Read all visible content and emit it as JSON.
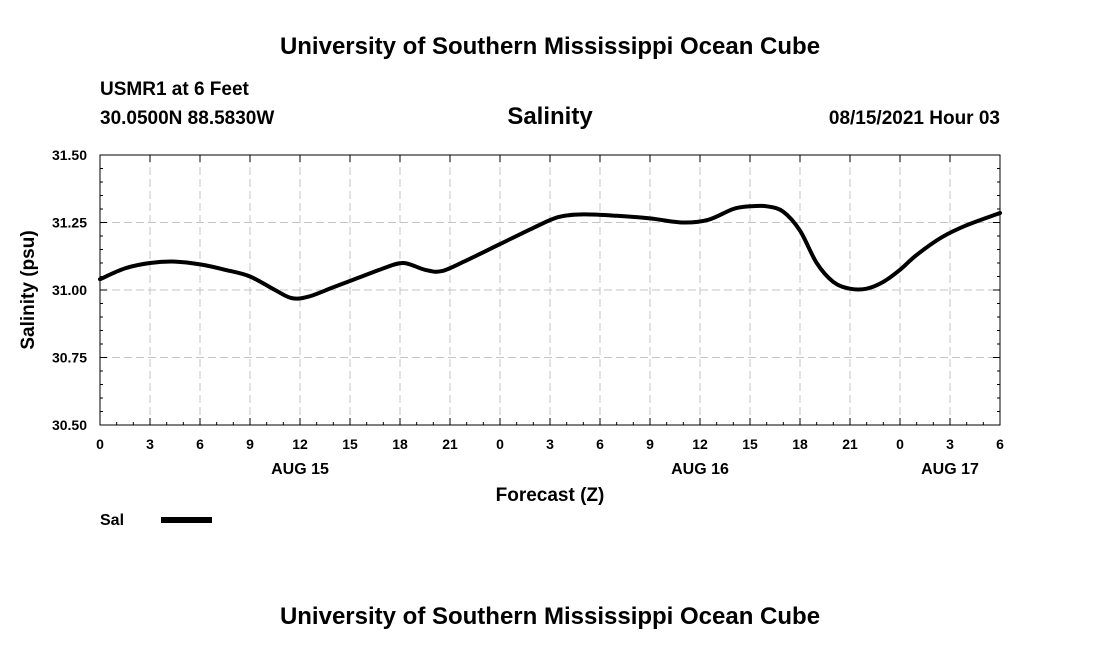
{
  "header": {
    "title": "University of Southern Mississippi Ocean Cube",
    "station": "USMR1 at 6 Feet",
    "coords": "30.0500N  88.5830W",
    "chart_title": "Salinity",
    "datetime": "08/15/2021 Hour 03"
  },
  "footer": {
    "title": "University of Southern Mississippi Ocean Cube"
  },
  "chart_data": {
    "type": "line",
    "title": "Salinity",
    "xlabel": "Forecast (Z)",
    "ylabel": "Salinity (psu)",
    "ylim": [
      30.5,
      31.5
    ],
    "xlim": [
      0,
      54
    ],
    "y_ticks": [
      "31.50",
      "31.25",
      "31.00",
      "30.75",
      "30.50"
    ],
    "x_tick_labels": [
      "0",
      "3",
      "6",
      "9",
      "12",
      "15",
      "18",
      "21",
      "0",
      "3",
      "6",
      "9",
      "12",
      "15",
      "18",
      "21",
      "0",
      "3",
      "6"
    ],
    "date_labels": [
      {
        "label": "AUG 15",
        "hour": 12
      },
      {
        "label": "AUG 16",
        "hour": 36
      },
      {
        "label": "AUG 17",
        "hour": 51
      }
    ],
    "grid": true,
    "legend": [
      {
        "name": "Sal",
        "color": "#000000"
      }
    ],
    "series": [
      {
        "name": "Sal",
        "x": [
          0,
          1.5,
          3,
          4.5,
          6,
          7.5,
          9,
          10.5,
          11.5,
          12.5,
          14,
          15.5,
          17,
          18.2,
          19.5,
          20.5,
          22,
          24,
          26,
          27.5,
          29,
          31,
          33,
          35,
          36.5,
          38,
          39,
          40,
          41,
          42,
          43,
          44,
          45,
          46,
          47,
          48,
          49,
          50.5,
          52,
          54
        ],
        "y": [
          31.04,
          31.08,
          31.1,
          31.105,
          31.095,
          31.075,
          31.05,
          31.0,
          30.97,
          30.975,
          31.01,
          31.045,
          31.08,
          31.1,
          31.075,
          31.07,
          31.11,
          31.17,
          31.23,
          31.27,
          31.28,
          31.275,
          31.265,
          31.25,
          31.26,
          31.3,
          31.31,
          31.31,
          31.29,
          31.22,
          31.1,
          31.03,
          31.005,
          31.005,
          31.03,
          31.075,
          31.13,
          31.195,
          31.24,
          31.285
        ]
      }
    ]
  }
}
